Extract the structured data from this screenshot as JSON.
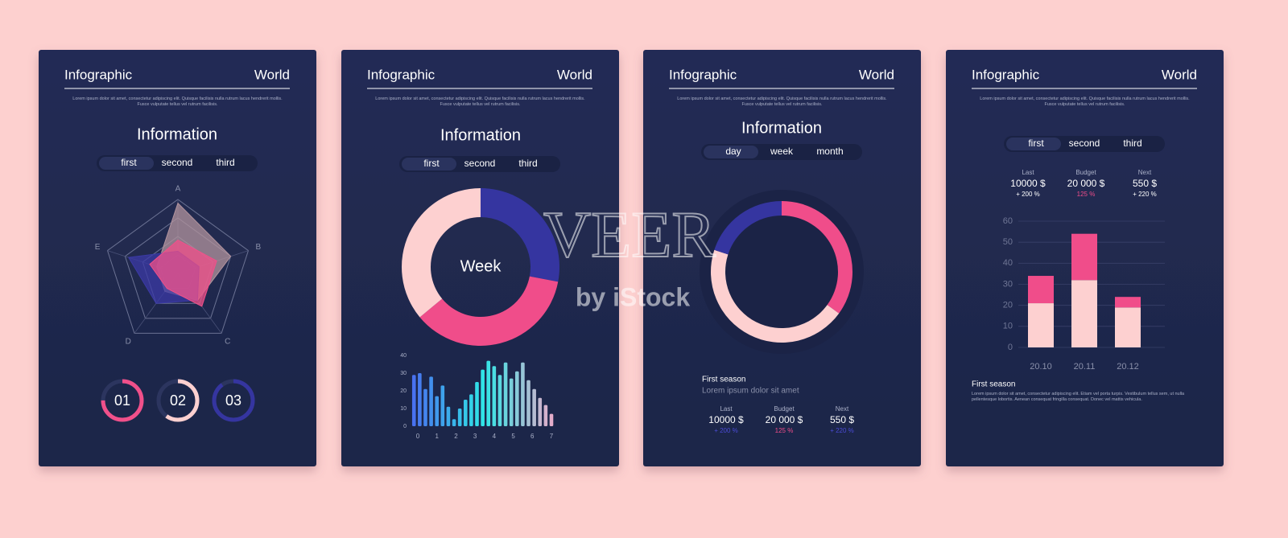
{
  "watermark": {
    "title": "VEER",
    "subtitle": "by iStock"
  },
  "panels": [
    {
      "header": {
        "left": "Infographic",
        "right": "World"
      },
      "intro": "Lorem ipsum dolor sit amet, consectetur adipiscing elit. Quisque facilisis nulla rutrum lacus hendrerit mollis. Fusce vulputate tellus vel rutrum facilisis.",
      "title": "Information",
      "tabs": [
        "first",
        "second",
        "third"
      ],
      "active_tab": 0,
      "chart_data": {
        "type": "radar",
        "axes": [
          "A",
          "B",
          "C",
          "D",
          "E"
        ],
        "rlim": [
          0,
          100
        ],
        "rticks": [
          25,
          50,
          75,
          100
        ],
        "grid": true,
        "series": [
          {
            "color": "#b3949e",
            "values": [
              95,
              75,
              45,
              30,
              30
            ]
          },
          {
            "color": "#3b3aa6",
            "values": [
              30,
              30,
              45,
              50,
              70
            ]
          },
          {
            "color": "#f0508a",
            "values": [
              45,
              55,
              55,
              25,
              40
            ]
          }
        ]
      },
      "gauges": {
        "glim": [
          0,
          100
        ],
        "items": [
          {
            "label": "01",
            "value": 75,
            "color": "#f0508a"
          },
          {
            "label": "02",
            "value": 60,
            "color": "#fdd0d0"
          },
          {
            "label": "03",
            "value": 90,
            "color": "#3535a0"
          }
        ]
      }
    },
    {
      "header": {
        "left": "Infographic",
        "right": "World"
      },
      "intro": "Lorem ipsum dolor sit amet, consectetur adipiscing elit. Quisque facilisis nulla rutrum lacus hendrerit mollis. Fusce vulputate tellus vel rutrum facilisis.",
      "title": "Information",
      "tabs": [
        "first",
        "second",
        "third"
      ],
      "active_tab": 0,
      "chart_data": [
        {
          "type": "donut",
          "center_label": "Week",
          "values": [
            28,
            36,
            36
          ],
          "colors": [
            "#3535a0",
            "#f04d8a",
            "#fdd0d0"
          ]
        },
        {
          "type": "bar",
          "x": [
            -0.2,
            0.1,
            0.4,
            0.7,
            1.0,
            1.3,
            1.6,
            1.9,
            2.2,
            2.5,
            2.8,
            3.1,
            3.4,
            3.7,
            4.0,
            4.3,
            4.6,
            4.9,
            5.2,
            5.5,
            5.8,
            6.1,
            6.4,
            6.7,
            7.0
          ],
          "values": [
            29,
            30,
            21,
            28,
            17,
            23,
            11,
            4,
            10,
            15,
            18,
            25,
            32,
            37,
            34,
            29,
            36,
            27,
            31,
            36,
            26,
            21,
            16,
            12,
            7
          ],
          "colors": [
            "#4a6cf0",
            "#2fe6e6",
            "#f2a8c8"
          ],
          "xlim": [
            -0.4,
            7.3
          ],
          "xticks": [
            0,
            1,
            2,
            3,
            4,
            5,
            6,
            7
          ],
          "ylim": [
            0,
            40
          ],
          "yticks": [
            0,
            10,
            20,
            30,
            40
          ]
        }
      ]
    },
    {
      "header": {
        "left": "Infographic",
        "right": "World"
      },
      "intro": "Lorem ipsum dolor sit amet, consectetur adipiscing elit. Quisque facilisis nulla rutrum lacus hendrerit mollis. Fusce vulputate tellus vel rutrum facilisis.",
      "title": "Information",
      "tabs": [
        "day",
        "week",
        "month"
      ],
      "active_tab": 0,
      "chart_data": {
        "type": "donut",
        "values": [
          35,
          45,
          20
        ],
        "colors": [
          "#f04d8a",
          "#fdd0d0",
          "#3535a0"
        ]
      },
      "heading": "First season",
      "subheading": "Lorem ipsum dolor sit amet",
      "stats": [
        {
          "label": "Last",
          "value": "10000 $",
          "change": "+ 200 %",
          "color": "#4b4bd6"
        },
        {
          "label": "Budget",
          "value": "20 000 $",
          "change": "125 %",
          "color": "#f04d8a"
        },
        {
          "label": "Next",
          "value": "550 $",
          "change": "+ 220 %",
          "color": "#4b4bd6"
        }
      ]
    },
    {
      "header": {
        "left": "Infographic",
        "right": "World"
      },
      "intro": "Lorem ipsum dolor sit amet, consectetur adipiscing elit. Quisque facilisis nulla rutrum lacus hendrerit mollis. Fusce vulputate tellus vel rutrum facilisis.",
      "tabs": [
        "first",
        "second",
        "third"
      ],
      "active_tab": 0,
      "stats": [
        {
          "label": "Last",
          "value": "10000 $",
          "change": "+ 200 %",
          "color": "#ffffff"
        },
        {
          "label": "Budget",
          "value": "20 000 $",
          "change": "125 %",
          "color": "#f04d8a"
        },
        {
          "label": "Next",
          "value": "550 $",
          "change": "+ 220 %",
          "color": "#ffffff"
        }
      ],
      "chart_data": {
        "type": "stacked-bar",
        "categories": [
          "20.10",
          "20.11",
          "20.12"
        ],
        "series": [
          {
            "color": "#fdd0d0",
            "values": [
              21,
              32,
              19
            ]
          },
          {
            "color": "#f04d8a",
            "values": [
              13,
              22,
              5
            ]
          }
        ],
        "ylim": [
          0,
          60
        ],
        "yticks": [
          0,
          10,
          20,
          30,
          40,
          50,
          60
        ],
        "grid": true
      },
      "heading": "First season",
      "text": "Lorem ipsum dolor sit amet, consectetur adipiscing elit. Etiam vel porta turpis. Vestibulum tellus sem, ut nulla pellentesque lobortis. Aenean consequat fringilla consequat. Donec vel mattis vehicula."
    }
  ]
}
